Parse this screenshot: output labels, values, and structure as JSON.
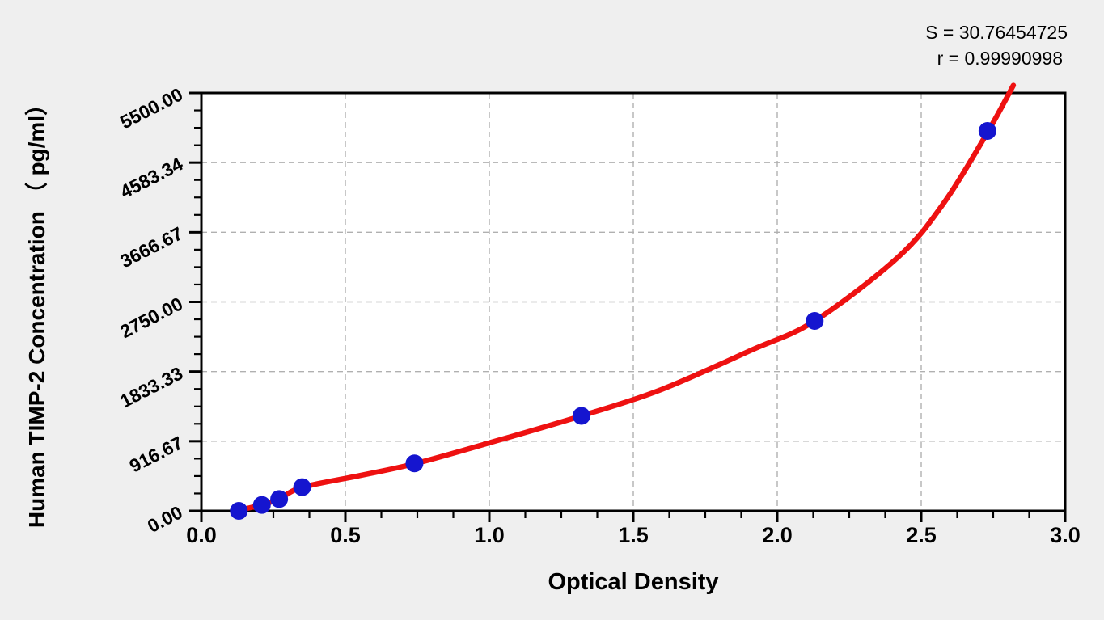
{
  "annotation": {
    "s_label": "S = 30.76454725",
    "r_label": "r = 0.99990998"
  },
  "chart_data": {
    "type": "scatter",
    "title": "",
    "xlabel": "Optical Density",
    "ylabel": "Human TIMP-2 Concentration （ pg/ml）",
    "xlim": [
      0,
      3
    ],
    "ylim": [
      0,
      5500
    ],
    "grid": "dashed major gridlines",
    "legend_position": "none",
    "x_ticks": {
      "values": [
        0,
        0.5,
        1.0,
        1.5,
        2.0,
        2.5,
        3.0
      ],
      "labels": [
        "0.0",
        "0.5",
        "1.0",
        "1.5",
        "2.0",
        "2.5",
        "3.0"
      ],
      "minor_divisions_per_major": 4
    },
    "y_ticks": {
      "values": [
        0,
        916.67,
        1833.33,
        2750.0,
        3666.67,
        4583.34,
        5500.0
      ],
      "labels": [
        "0.00",
        "916.67",
        "1833.33",
        "2750.00",
        "3666.67",
        "4583.34",
        "5500.00"
      ],
      "minor_divisions_per_major": 4
    },
    "series": [
      {
        "name": "standards",
        "marker": "circle",
        "points": [
          [
            0.13,
            0
          ],
          [
            0.21,
            78.13
          ],
          [
            0.27,
            156.25
          ],
          [
            0.35,
            312.5
          ],
          [
            0.74,
            625
          ],
          [
            1.32,
            1250
          ],
          [
            2.13,
            2500
          ],
          [
            2.73,
            5000
          ]
        ]
      }
    ],
    "fit_curve": {
      "name": "regression-curve",
      "anchors": [
        [
          0.12,
          0
        ],
        [
          0.21,
          80
        ],
        [
          0.27,
          158
        ],
        [
          0.35,
          310
        ],
        [
          0.55,
          465
        ],
        [
          0.74,
          620
        ],
        [
          1.0,
          895
        ],
        [
          1.32,
          1250
        ],
        [
          1.6,
          1600
        ],
        [
          1.91,
          2115
        ],
        [
          2.13,
          2500
        ],
        [
          2.42,
          3340
        ],
        [
          2.58,
          4060
        ],
        [
          2.73,
          4980
        ],
        [
          2.82,
          5600
        ]
      ]
    },
    "colors": {
      "background": "#efefef",
      "plot_background": "#ffffff",
      "frame": "#000000",
      "gridline": "#b0b0b0",
      "curve": "#ee1111",
      "point": "#1515cf"
    }
  }
}
